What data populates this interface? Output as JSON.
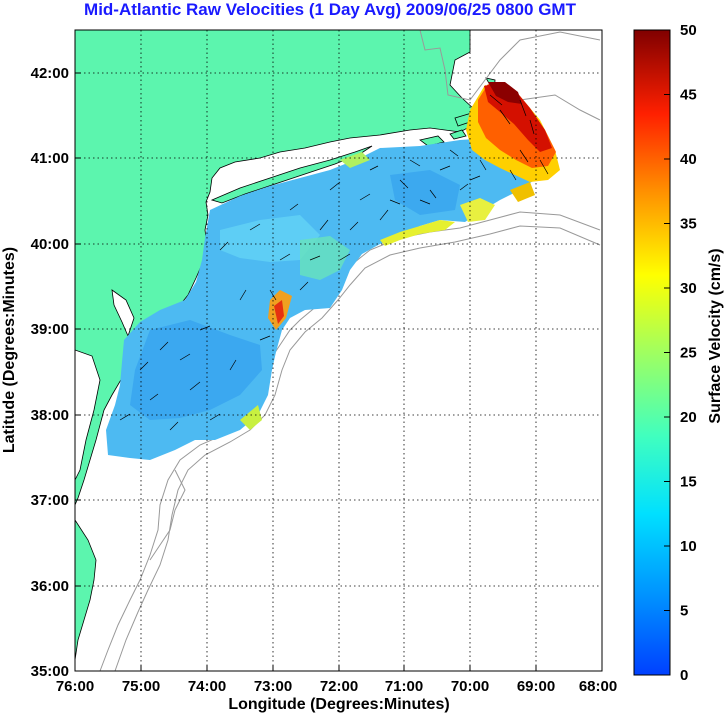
{
  "title": "Mid-Atlantic Raw Velocities (1 Day Avg) 2009/06/25 0800 GMT",
  "map": {
    "xlabel": "Longitude (Degrees:Minutes)",
    "ylabel": "Latitude (Degrees:Minutes)",
    "x_ticks": [
      "76:00",
      "75:00",
      "74:00",
      "73:00",
      "72:00",
      "71:00",
      "70:00",
      "69:00",
      "68:00"
    ],
    "y_ticks": [
      "35:00",
      "36:00",
      "37:00",
      "38:00",
      "39:00",
      "40:00",
      "41:00",
      "42:00"
    ],
    "lon_range": [
      -76,
      -68
    ],
    "lat_range": [
      35,
      42.5
    ],
    "grid": "dotted",
    "land_color": "#5cf5ae"
  },
  "colorbar": {
    "label": "Surface Velocity (cm/s)",
    "ticks": [
      "0",
      "5",
      "10",
      "15",
      "20",
      "25",
      "30",
      "35",
      "40",
      "45",
      "50"
    ],
    "range": [
      0,
      50
    ],
    "colormap": "jet"
  }
}
